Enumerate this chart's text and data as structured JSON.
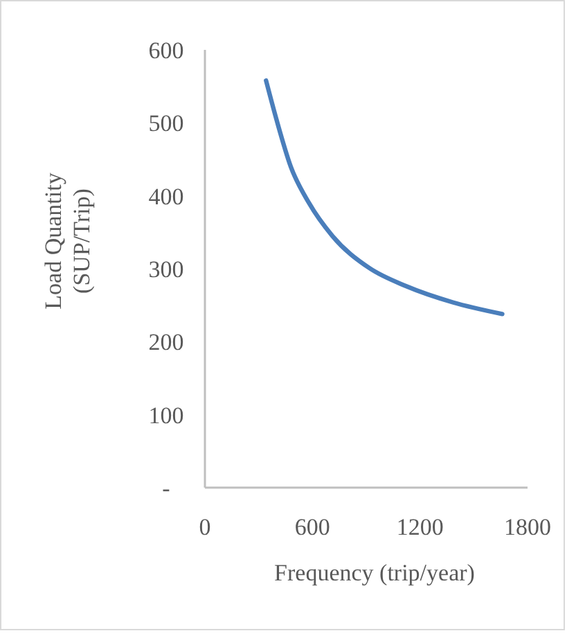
{
  "chart_data": {
    "type": "line",
    "xlabel": "Frequency (trip/year)",
    "ylabel": "Load Quantity (SUP/Trip)",
    "xlim": [
      0,
      1800
    ],
    "xticks": [
      0,
      600,
      1200,
      1800
    ],
    "ylim": [
      0,
      600
    ],
    "yticks": [
      {
        "value": 0,
        "label": "-"
      },
      100,
      200,
      300,
      400,
      500,
      600
    ],
    "grid": false,
    "marker": "none",
    "line_style": "solid",
    "series": [
      {
        "color": "#4a7ebb",
        "x": [
          341,
          401,
          479,
          581,
          711,
          917,
          1124,
          1383,
          1659
        ],
        "values": [
          558,
          503,
          440,
          390,
          345,
          301,
          276,
          254,
          238
        ]
      }
    ]
  }
}
